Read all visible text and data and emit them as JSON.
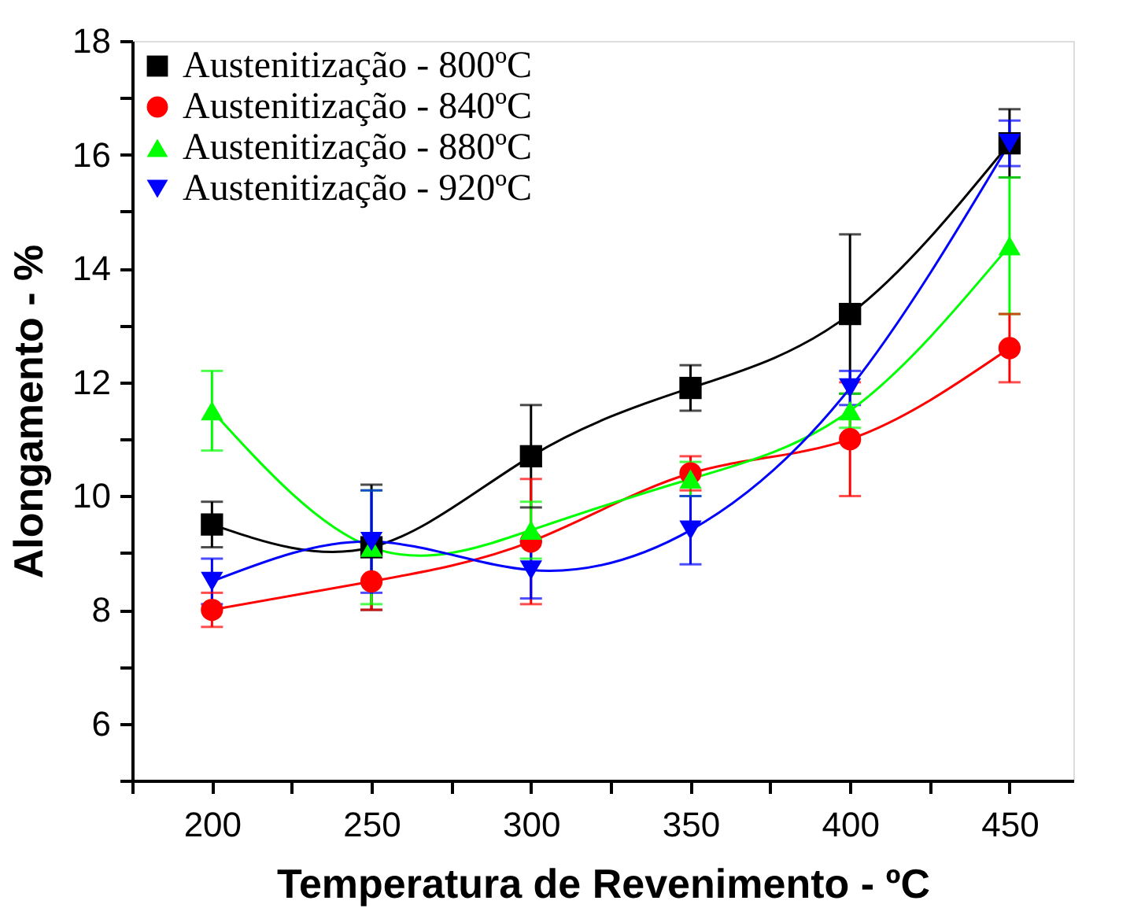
{
  "chart_data": {
    "type": "line",
    "xlabel": "Temperatura de Revenimento - ºC",
    "ylabel": "Alongamento - %",
    "x": [
      200,
      250,
      300,
      350,
      400,
      450
    ],
    "xlim": [
      175,
      470
    ],
    "ylim": [
      5,
      18
    ],
    "xticks": [
      {
        "value": 175,
        "label": null
      },
      200,
      {
        "value": 225,
        "label": null
      },
      250,
      {
        "value": 275,
        "label": null
      },
      300,
      {
        "value": 325,
        "label": null
      },
      350,
      {
        "value": 375,
        "label": null
      },
      400,
      {
        "value": 425,
        "label": null
      },
      450
    ],
    "yticks": [
      {
        "value": 5,
        "label": null
      },
      6,
      {
        "value": 7,
        "label": null
      },
      8,
      {
        "value": 9,
        "label": null
      },
      10,
      {
        "value": 11,
        "label": null
      },
      12,
      {
        "value": 13,
        "label": null
      },
      14,
      {
        "value": 15,
        "label": null
      },
      16,
      {
        "value": 17,
        "label": null
      },
      18
    ],
    "legend": "top left",
    "grid": false,
    "series": [
      {
        "name": "Austenitização - 800ºC",
        "color": "#000000",
        "marker": "square",
        "values": [
          9.5,
          9.1,
          10.7,
          11.9,
          13.2,
          16.2
        ],
        "errors": [
          0.4,
          1.1,
          0.9,
          0.4,
          1.4,
          0.6
        ]
      },
      {
        "name": "Austenitização - 840ºC",
        "color": "#ff0000",
        "marker": "circle",
        "values": [
          8.0,
          8.5,
          9.2,
          10.4,
          11.0,
          12.6
        ],
        "errors": [
          0.3,
          0.5,
          1.1,
          0.3,
          1.0,
          0.6
        ]
      },
      {
        "name": "Austenitização - 880ºC",
        "color": "#00ff00",
        "marker": "triangle",
        "values": [
          11.5,
          9.1,
          9.4,
          10.3,
          11.5,
          14.4
        ],
        "errors": [
          0.7,
          1.0,
          0.5,
          0.3,
          0.3,
          1.2
        ]
      },
      {
        "name": "Austenitização - 920ºC",
        "color": "#0000ff",
        "marker": "triangle-down",
        "values": [
          8.5,
          9.2,
          8.7,
          9.4,
          11.9,
          16.2
        ],
        "errors": [
          0.4,
          0.9,
          0.5,
          0.6,
          0.3,
          0.4
        ]
      }
    ]
  }
}
